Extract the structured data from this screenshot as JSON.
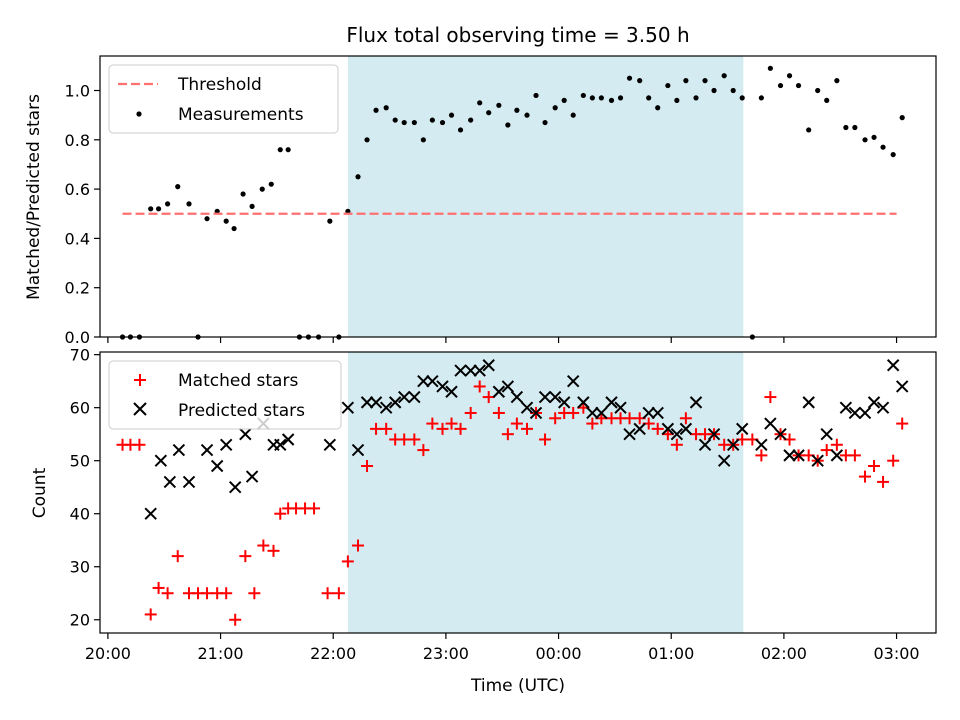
{
  "chart_data": [
    {
      "type": "scatter",
      "title": "Flux total observing time = 3.50 h",
      "ylabel": "Matched/Predicted stars",
      "xlim": [
        19.93,
        27.35
      ],
      "ylim": [
        0,
        1.14
      ],
      "yticks": [
        0.0,
        0.2,
        0.4,
        0.6,
        0.8,
        1.0
      ],
      "ytick_labels": [
        "0.0",
        "0.2",
        "0.4",
        "0.6",
        "0.8",
        "1.0"
      ],
      "highlight_span": [
        22.13,
        25.64
      ],
      "highlight_color": "#d4ebf1",
      "threshold": {
        "name": "Threshold",
        "y": 0.5,
        "x_range": [
          20.13,
          27.0
        ],
        "color": "#ff7070"
      },
      "legend": {
        "placement": "top-left",
        "entries": [
          "Threshold",
          "Measurements"
        ]
      },
      "series": [
        {
          "name": "Measurements",
          "color": "#000000",
          "x": [
            20.13,
            20.2,
            20.28,
            20.38,
            20.45,
            20.53,
            20.62,
            20.72,
            20.8,
            20.88,
            20.97,
            21.05,
            21.12,
            21.2,
            21.28,
            21.37,
            21.45,
            21.53,
            21.6,
            21.7,
            21.78,
            21.87,
            21.97,
            22.05,
            22.13,
            22.22,
            22.3,
            22.38,
            22.47,
            22.55,
            22.63,
            22.72,
            22.8,
            22.88,
            22.97,
            23.05,
            23.13,
            23.22,
            23.3,
            23.38,
            23.47,
            23.55,
            23.63,
            23.72,
            23.8,
            23.88,
            23.97,
            24.05,
            24.13,
            24.22,
            24.3,
            24.38,
            24.47,
            24.55,
            24.63,
            24.72,
            24.8,
            24.88,
            24.97,
            25.05,
            25.13,
            25.22,
            25.3,
            25.38,
            25.47,
            25.55,
            25.63,
            25.72,
            25.8,
            25.88,
            25.97,
            26.05,
            26.13,
            26.22,
            26.3,
            26.38,
            26.47,
            26.55,
            26.63,
            26.72,
            26.8,
            26.88,
            26.97,
            27.05
          ],
          "y": [
            0,
            0,
            0,
            0.52,
            0.52,
            0.54,
            0.61,
            0.54,
            0,
            0.48,
            0.51,
            0.47,
            0.44,
            0.58,
            0.53,
            0.6,
            0.62,
            0.76,
            0.76,
            0,
            0,
            0,
            0.47,
            0,
            0.51,
            0.65,
            0.8,
            0.92,
            0.93,
            0.88,
            0.87,
            0.87,
            0.8,
            0.88,
            0.87,
            0.9,
            0.84,
            0.88,
            0.95,
            0.91,
            0.94,
            0.86,
            0.92,
            0.9,
            0.98,
            0.87,
            0.93,
            0.96,
            0.9,
            0.98,
            0.97,
            0.97,
            0.96,
            0.97,
            1.05,
            1.04,
            0.97,
            0.93,
            1.02,
            0.96,
            1.04,
            0.97,
            1.04,
            1.0,
            1.06,
            1.0,
            0.97,
            0,
            0.97,
            1.09,
            1.02,
            1.06,
            1.02,
            0.84,
            1.0,
            0.96,
            1.04,
            0.85,
            0.85,
            0.8,
            0.81,
            0.77,
            0.74,
            0.89
          ]
        }
      ]
    },
    {
      "type": "scatter",
      "xlabel": "Time (UTC)",
      "ylabel": "Count",
      "xlim": [
        19.93,
        27.35
      ],
      "ylim": [
        17.5,
        70.5
      ],
      "yticks": [
        20,
        30,
        40,
        50,
        60,
        70
      ],
      "ytick_labels": [
        "20",
        "30",
        "40",
        "50",
        "60",
        "70"
      ],
      "xticks": [
        20,
        21,
        22,
        23,
        24,
        25,
        26,
        27
      ],
      "xtick_labels": [
        "20:00",
        "21:00",
        "22:00",
        "23:00",
        "00:00",
        "01:00",
        "02:00",
        "03:00"
      ],
      "highlight_span": [
        22.13,
        25.64
      ],
      "highlight_color": "#d4ebf1",
      "legend": {
        "placement": "top-left",
        "entries": [
          "Matched stars",
          "Predicted stars"
        ]
      },
      "series": [
        {
          "name": "Matched stars",
          "marker": "plus",
          "color": "#ff0000",
          "x": [
            20.13,
            20.2,
            20.28,
            20.38,
            20.45,
            20.53,
            20.62,
            20.72,
            20.8,
            20.88,
            20.97,
            21.05,
            21.13,
            21.22,
            21.3,
            21.38,
            21.47,
            21.53,
            21.6,
            21.67,
            21.75,
            21.83,
            21.95,
            22.05,
            22.13,
            22.22,
            22.3,
            22.38,
            22.47,
            22.55,
            22.63,
            22.72,
            22.8,
            22.88,
            22.97,
            23.05,
            23.13,
            23.22,
            23.3,
            23.38,
            23.47,
            23.55,
            23.63,
            23.72,
            23.8,
            23.88,
            23.97,
            24.05,
            24.13,
            24.22,
            24.3,
            24.38,
            24.47,
            24.55,
            24.63,
            24.72,
            24.8,
            24.88,
            24.97,
            25.05,
            25.13,
            25.22,
            25.3,
            25.38,
            25.47,
            25.55,
            25.63,
            25.72,
            25.8,
            25.88,
            25.97,
            26.05,
            26.13,
            26.22,
            26.3,
            26.38,
            26.47,
            26.55,
            26.63,
            26.72,
            26.8,
            26.88,
            26.97,
            27.05
          ],
          "y": [
            53,
            53,
            53,
            21,
            26,
            25,
            32,
            25,
            25,
            25,
            25,
            25,
            20,
            32,
            25,
            34,
            33,
            40,
            41,
            41,
            41,
            41,
            25,
            25,
            31,
            34,
            49,
            56,
            56,
            54,
            54,
            54,
            52,
            57,
            56,
            57,
            56,
            59,
            64,
            62,
            59,
            55,
            57,
            56,
            59,
            54,
            58,
            59,
            59,
            60,
            57,
            58,
            58,
            58,
            58,
            58,
            57,
            56,
            55,
            53,
            58,
            55,
            55,
            55,
            53,
            53,
            54,
            54,
            51,
            62,
            55,
            54,
            51,
            51,
            50,
            52,
            53,
            51,
            51,
            47,
            49,
            46,
            50,
            57
          ]
        },
        {
          "name": "Predicted stars",
          "marker": "x",
          "color": "#000000",
          "x": [
            20.38,
            20.47,
            20.55,
            20.63,
            20.72,
            20.88,
            20.97,
            21.05,
            21.13,
            21.22,
            21.28,
            21.38,
            21.47,
            21.53,
            21.6,
            21.97,
            22.13,
            22.22,
            22.3,
            22.38,
            22.47,
            22.55,
            22.63,
            22.72,
            22.8,
            22.88,
            22.97,
            23.05,
            23.13,
            23.22,
            23.3,
            23.38,
            23.47,
            23.55,
            23.63,
            23.72,
            23.8,
            23.88,
            23.97,
            24.05,
            24.13,
            24.22,
            24.3,
            24.38,
            24.47,
            24.55,
            24.63,
            24.72,
            24.8,
            24.88,
            24.97,
            25.05,
            25.13,
            25.22,
            25.3,
            25.38,
            25.47,
            25.55,
            25.63,
            25.8,
            25.88,
            25.97,
            26.05,
            26.13,
            26.22,
            26.3,
            26.38,
            26.47,
            26.55,
            26.63,
            26.72,
            26.8,
            26.88,
            26.97,
            27.05
          ],
          "y": [
            40,
            50,
            46,
            52,
            46,
            52,
            49,
            53,
            45,
            55,
            47,
            57,
            53,
            53,
            54,
            53,
            60,
            52,
            61,
            61,
            60,
            61,
            62,
            62,
            65,
            65,
            64,
            63,
            67,
            67,
            67,
            68,
            63,
            64,
            62,
            60,
            59,
            62,
            62,
            61,
            65,
            61,
            59,
            59,
            61,
            60,
            55,
            56,
            59,
            59,
            56,
            55,
            56,
            61,
            53,
            55,
            50,
            53,
            56,
            53,
            57,
            55,
            51,
            51,
            61,
            50,
            55,
            51,
            60,
            59,
            59,
            61,
            60,
            68,
            64
          ]
        }
      ]
    }
  ]
}
